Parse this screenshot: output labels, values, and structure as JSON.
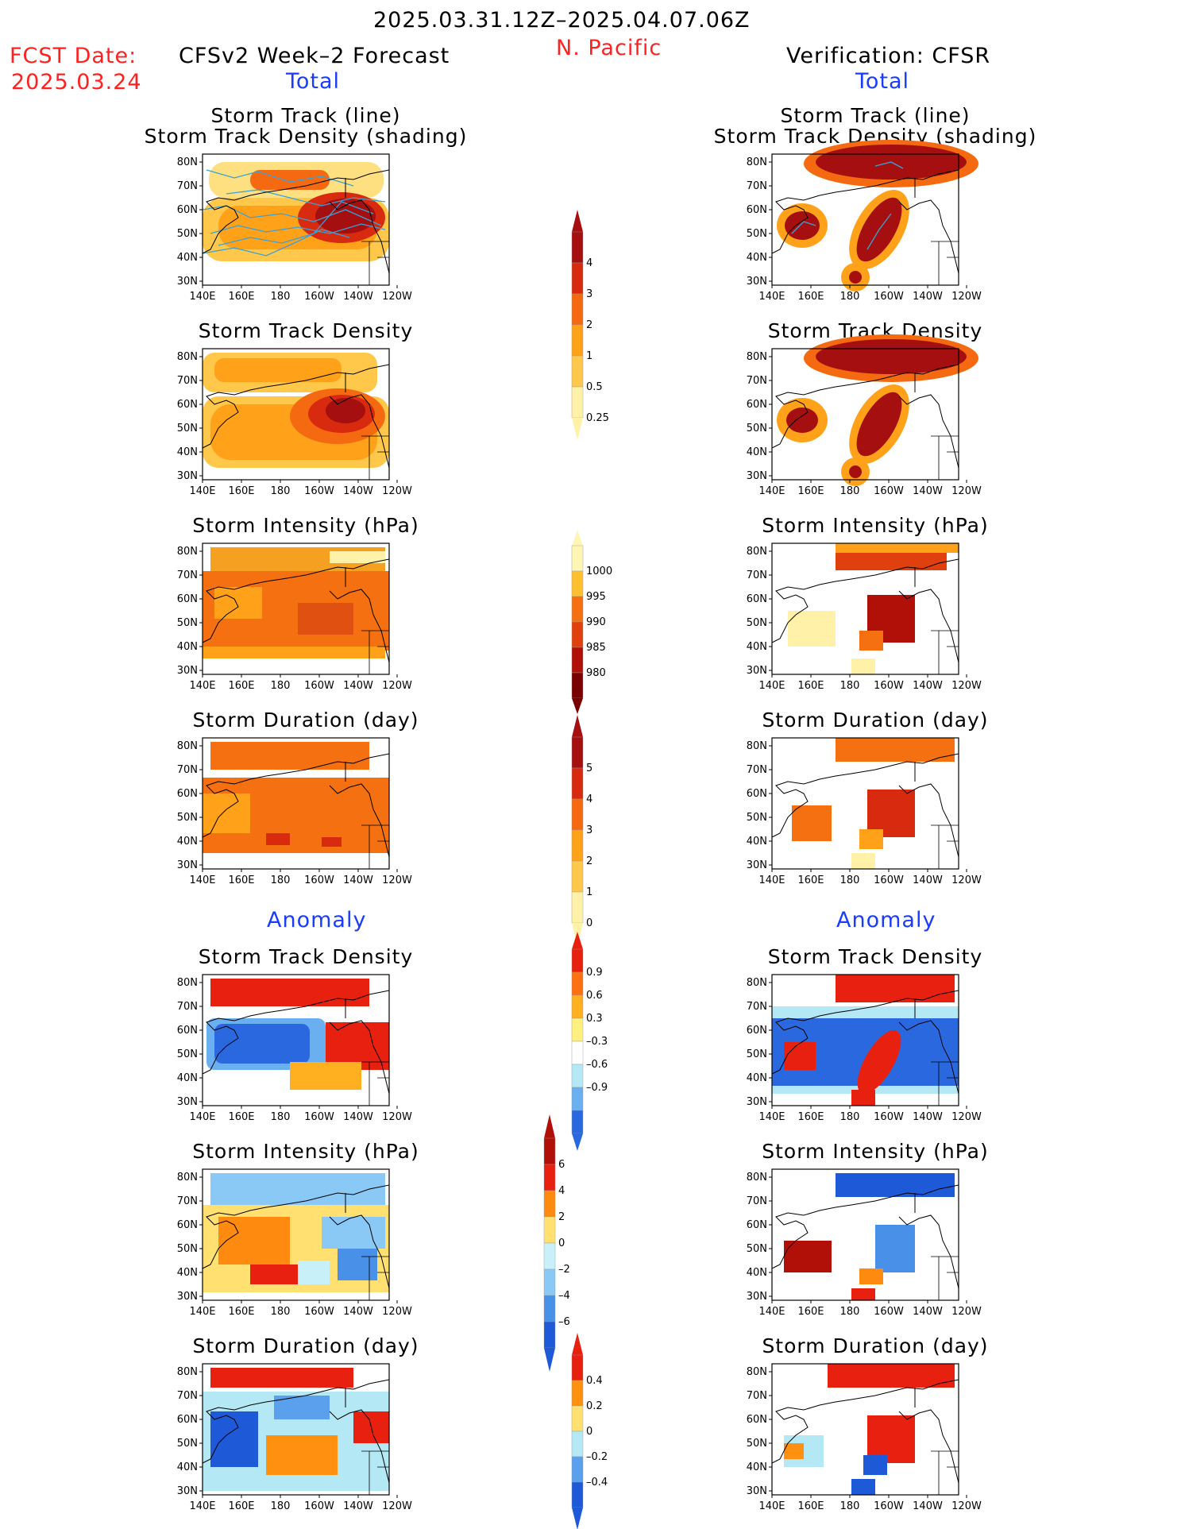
{
  "header": {
    "period": "2025.03.31.12Z–2025.04.07.06Z",
    "region": "N. Pacific",
    "fcst_label": "FCST Date:",
    "fcst_date": "2025.03.24",
    "left_model": "CFSv2 Week–2 Forecast",
    "right_model": "Verification: CFSR",
    "total_left": "Total",
    "total_right": "Total",
    "anomaly_left": "Anomaly",
    "anomaly_right": "Anomaly"
  },
  "panel_titles": {
    "track_line": "Storm Track (line)",
    "track_density_shading": "Storm Track Density (shading)",
    "track_density": "Storm Track Density",
    "intensity": "Storm Intensity (hPa)",
    "duration": "Storm Duration (day)"
  },
  "axes": {
    "lat_ticks": [
      "80N",
      "70N",
      "60N",
      "50N",
      "40N",
      "30N"
    ],
    "lon_ticks": [
      "140E",
      "160E",
      "180",
      "160W",
      "140W",
      "120W"
    ]
  },
  "colorbars": {
    "density_total": {
      "labels": [
        "4",
        "3",
        "2",
        "1",
        "0.5",
        "0.25"
      ],
      "colors": [
        "#a50f0f",
        "#d82a0e",
        "#f56a10",
        "#ffa21a",
        "#ffc84a",
        "#fff2a8"
      ]
    },
    "intensity_total": {
      "labels": [
        "1000",
        "995",
        "990",
        "985",
        "980"
      ],
      "colors": [
        "#fff5b4",
        "#ffc030",
        "#f57010",
        "#e0400d",
        "#b01008",
        "#7a0000"
      ]
    },
    "duration_total": {
      "labels": [
        "5",
        "4",
        "3",
        "2",
        "1",
        "0"
      ],
      "colors": [
        "#a50f0f",
        "#d82a0e",
        "#f56a10",
        "#ffa21a",
        "#ffc84a",
        "#fff2a8"
      ]
    },
    "density_anom": {
      "labels": [
        "0.9",
        "0.6",
        "0.3",
        "–0.3",
        "–0.6",
        "–0.9"
      ],
      "colors": [
        "#e82010",
        "#ff7010",
        "#ffb020",
        "#fff080",
        "#ffffff",
        "#b5e8f5",
        "#6ab0f0",
        "#2a68e0"
      ]
    },
    "intensity_anom": {
      "labels": [
        "6",
        "4",
        "2",
        "0",
        "–2",
        "–4",
        "–6"
      ],
      "colors": [
        "#b01008",
        "#e82010",
        "#ff8a10",
        "#ffe070",
        "#c8f0f8",
        "#8ac8f5",
        "#4890e8",
        "#1e5ad8"
      ]
    },
    "duration_anom": {
      "labels": [
        "0.4",
        "0.2",
        "0",
        "–0.2",
        "–0.4"
      ],
      "colors": [
        "#e82010",
        "#ff9010",
        "#ffe070",
        "#b5e8f5",
        "#5aa0ec",
        "#1e5ad8"
      ]
    }
  },
  "chart_data": {
    "type": "heatmap",
    "title": "2025.03.31.12Z–2025.04.07.06Z N. Pacific",
    "x_axis": {
      "ticks": [
        "140E",
        "160E",
        "180",
        "160W",
        "140W",
        "120W"
      ]
    },
    "y_axis": {
      "ticks": [
        "30N",
        "40N",
        "50N",
        "60N",
        "70N",
        "80N"
      ]
    },
    "panels": [
      {
        "column": "CFSv2 Week–2 Forecast",
        "section": "Total",
        "title": "Storm Track (line) / Storm Track Density (shading)"
      },
      {
        "column": "CFSv2 Week–2 Forecast",
        "section": "Total",
        "title": "Storm Track Density"
      },
      {
        "column": "CFSv2 Week–2 Forecast",
        "section": "Total",
        "title": "Storm Intensity (hPa)"
      },
      {
        "column": "CFSv2 Week–2 Forecast",
        "section": "Total",
        "title": "Storm Duration (day)"
      },
      {
        "column": "CFSv2 Week–2 Forecast",
        "section": "Anomaly",
        "title": "Storm Track Density"
      },
      {
        "column": "CFSv2 Week–2 Forecast",
        "section": "Anomaly",
        "title": "Storm Intensity (hPa)"
      },
      {
        "column": "CFSv2 Week–2 Forecast",
        "section": "Anomaly",
        "title": "Storm Duration (day)"
      },
      {
        "column": "Verification: CFSR",
        "section": "Total",
        "title": "Storm Track (line) / Storm Track Density (shading)"
      },
      {
        "column": "Verification: CFSR",
        "section": "Total",
        "title": "Storm Track Density"
      },
      {
        "column": "Verification: CFSR",
        "section": "Total",
        "title": "Storm Intensity (hPa)"
      },
      {
        "column": "Verification: CFSR",
        "section": "Total",
        "title": "Storm Duration (day)"
      },
      {
        "column": "Verification: CFSR",
        "section": "Anomaly",
        "title": "Storm Track Density"
      },
      {
        "column": "Verification: CFSR",
        "section": "Anomaly",
        "title": "Storm Intensity (hPa)"
      },
      {
        "column": "Verification: CFSR",
        "section": "Anomaly",
        "title": "Storm Duration (day)"
      }
    ]
  }
}
